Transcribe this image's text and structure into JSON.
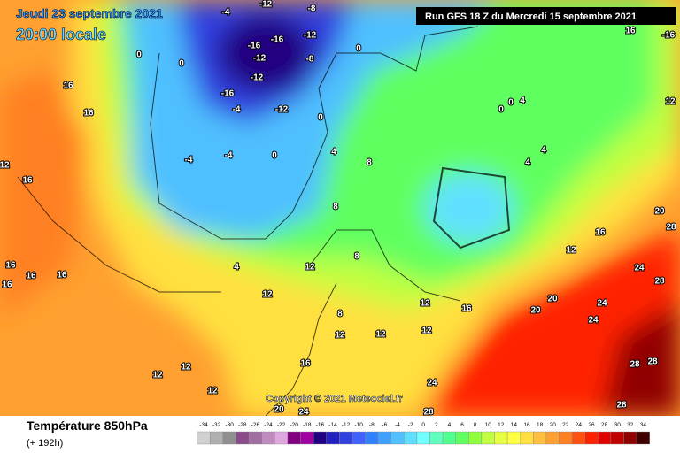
{
  "header": {
    "date": "Jeudi 23 septembre 2021",
    "time": "20:00 locale",
    "run": "Run GFS 18 Z du Mercredi 15 septembre 2021"
  },
  "copyright": "Copyright © 2021 Meteociel.fr",
  "footer": {
    "title": "Température 850hPa",
    "lead": "(+ 192h)"
  },
  "scale": {
    "labels": [
      -34,
      -32,
      -30,
      -28,
      -26,
      -24,
      -22,
      -20,
      -18,
      -16,
      -14,
      -12,
      -10,
      -8,
      -6,
      -4,
      -2,
      0,
      2,
      4,
      6,
      8,
      10,
      12,
      14,
      16,
      18,
      20,
      22,
      24,
      26,
      28,
      30,
      32,
      34
    ],
    "colors": [
      "#d0d0d0",
      "#b0b0b0",
      "#909090",
      "#8b4b8b",
      "#a06ea0",
      "#c08cc0",
      "#e0a8e0",
      "#800080",
      "#a000a0",
      "#200080",
      "#2020c0",
      "#3040e0",
      "#4060ff",
      "#3080ff",
      "#40a0ff",
      "#50c0ff",
      "#60e0ff",
      "#70ffff",
      "#60ffc0",
      "#50ff90",
      "#60ff60",
      "#90ff40",
      "#c0ff40",
      "#e8ff40",
      "#ffff40",
      "#ffe040",
      "#ffc040",
      "#ffa030",
      "#ff8020",
      "#ff5010",
      "#ff2000",
      "#e00000",
      "#c00000",
      "#900000",
      "#400000"
    ]
  },
  "contour_labels": [
    -12,
    -8,
    -16,
    -12,
    -16,
    -12,
    -8,
    -16,
    -12,
    -12,
    -4,
    -4,
    -4,
    -4,
    0,
    0,
    0,
    0,
    0,
    0,
    0,
    4,
    4,
    4,
    4,
    4,
    8,
    8,
    8,
    8,
    12,
    12,
    12,
    12,
    12,
    12,
    12,
    16,
    16,
    16,
    16,
    16,
    16,
    16,
    20,
    20,
    20,
    20,
    24,
    24,
    24,
    24,
    24,
    28,
    28,
    28,
    28,
    28,
    28,
    12,
    16,
    16,
    16,
    12,
    12,
    12,
    -16,
    12,
    16
  ]
}
